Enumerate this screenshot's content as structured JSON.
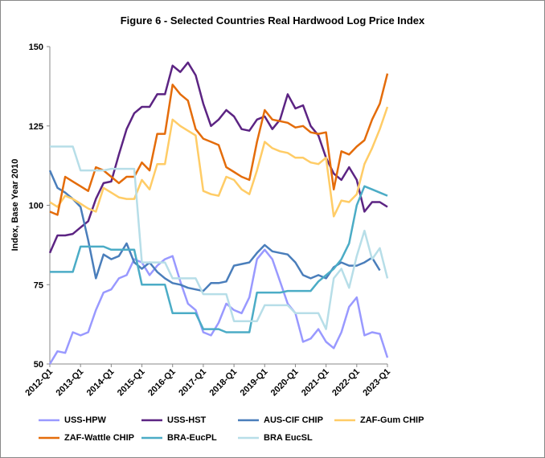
{
  "chart_data": {
    "type": "line",
    "title": "Figure 6 - Selected Countries Real Hardwood Log Price Index",
    "y_label": "Index, Base Year 2010",
    "categories": [
      "2012-Q1",
      null,
      null,
      null,
      "2013-Q1",
      null,
      null,
      null,
      "2014-Q1",
      null,
      null,
      null,
      "2015-Q1",
      null,
      null,
      null,
      "2016-Q1",
      null,
      null,
      null,
      "2017-Q1",
      null,
      null,
      null,
      "2018-Q1",
      null,
      null,
      null,
      "2019-Q1",
      null,
      null,
      null,
      "2020-Q1",
      null,
      null,
      null,
      "2021-Q1",
      null,
      null,
      null,
      "2022-Q1",
      null,
      null,
      null,
      "2023-Q1"
    ],
    "ylim": [
      50,
      150
    ],
    "yticks": [
      50,
      75,
      100,
      125,
      150
    ],
    "series": [
      {
        "name": "USS-HPW",
        "color": "#9999ff",
        "values": [
          50,
          54,
          53.5,
          60,
          59,
          60,
          67,
          72.5,
          73.5,
          77,
          78,
          83,
          82,
          78,
          81,
          83,
          84,
          76,
          69,
          67,
          60,
          59,
          63,
          69,
          67,
          66,
          71,
          83,
          86,
          83,
          76,
          69,
          66,
          57,
          58,
          61,
          57,
          55,
          60,
          68,
          71,
          59,
          60,
          59.5,
          52
        ]
      },
      {
        "name": "USS-HST",
        "color": "#5c2483",
        "values": [
          85,
          90.5,
          90.5,
          91,
          93,
          95,
          102,
          107,
          107.5,
          116,
          124,
          129,
          131,
          131,
          135,
          135,
          144,
          142,
          145,
          141,
          132,
          125,
          127,
          130,
          128,
          124,
          123.5,
          127,
          128,
          124,
          127,
          135,
          130.5,
          131.5,
          125,
          122,
          115,
          110,
          108,
          112,
          108,
          98,
          101,
          101,
          99.5
        ]
      },
      {
        "name": "AUS-CIF CHIP",
        "color": "#4a7ebb",
        "values": [
          111,
          105.5,
          104,
          102,
          99.5,
          89,
          77,
          84.5,
          83,
          84,
          88,
          82,
          80,
          82,
          79,
          77,
          75.5,
          75,
          74,
          73.5,
          73,
          75.5,
          75.5,
          76,
          81,
          81.5,
          82,
          85,
          87.5,
          85.5,
          85,
          84.5,
          82,
          78,
          77,
          78,
          77,
          80.5,
          82,
          81,
          81,
          82,
          83.5,
          79.5,
          null
        ]
      },
      {
        "name": "ZAF-Gum CHIP",
        "color": "#ffcc66",
        "values": [
          101,
          99.5,
          103,
          102,
          100.5,
          99,
          98,
          105.5,
          104,
          102.5,
          102,
          102,
          108,
          105,
          113,
          113,
          127,
          125,
          123.5,
          122,
          104.5,
          103.5,
          103,
          109,
          108,
          105,
          103.5,
          111,
          120,
          118,
          117,
          116.5,
          115,
          115,
          113.5,
          113,
          115,
          96.5,
          101.5,
          101,
          103.5,
          113,
          118,
          124,
          131
        ]
      },
      {
        "name": "ZAF-Wattle CHIP",
        "color": "#e46c0a",
        "values": [
          98,
          97,
          109,
          107.5,
          106,
          104.5,
          112,
          111,
          109,
          107,
          109,
          109,
          113.5,
          111,
          122.5,
          122.5,
          138,
          135,
          133,
          124,
          121,
          120,
          119,
          112,
          110.5,
          109,
          108,
          120,
          130,
          127,
          126.5,
          126,
          124.5,
          125,
          123,
          122.5,
          123,
          105,
          117,
          116,
          118.5,
          120.5,
          127,
          132,
          141.5
        ]
      },
      {
        "name": "BRA-EucPL",
        "color": "#4bacc6",
        "values": [
          79,
          79,
          79,
          79,
          87,
          87,
          87,
          87,
          86,
          86,
          86,
          86,
          75,
          75,
          75,
          75,
          66,
          66,
          66,
          66,
          61,
          61,
          61,
          60,
          60,
          60,
          60,
          72.5,
          72.5,
          72.5,
          72.5,
          73,
          73,
          73,
          73,
          76,
          78,
          80,
          83,
          88,
          100,
          106,
          105,
          104,
          103
        ]
      },
      {
        "name": "BRA EucSL",
        "color": "#b7dee8",
        "values": [
          118.5,
          118.5,
          118.5,
          118.5,
          111,
          111,
          111,
          111,
          111.5,
          111.5,
          111.5,
          111.5,
          82,
          82,
          82,
          82,
          77,
          77,
          77,
          77,
          72,
          72,
          72,
          72,
          63.5,
          63.5,
          63.5,
          63.5,
          68.5,
          68.5,
          68.5,
          68.5,
          66,
          66,
          66,
          66,
          61,
          77,
          80,
          74,
          84,
          92,
          83,
          86.5,
          77
        ]
      }
    ]
  }
}
